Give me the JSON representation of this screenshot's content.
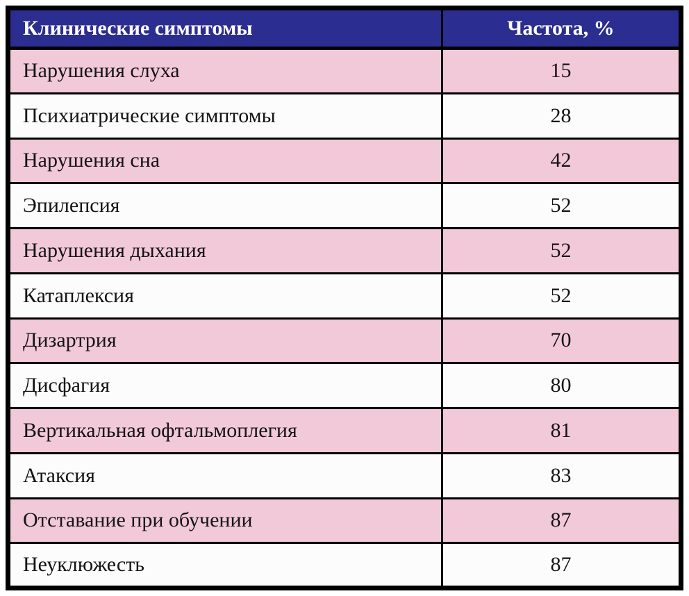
{
  "colors": {
    "header_bg": "#2b2d90",
    "header_text": "#ffffff",
    "row_pink": "#f2c9d8",
    "row_white": "#fdfcfd",
    "border": "#000000",
    "body_text": "#141414"
  },
  "chart_data": {
    "type": "table",
    "columns": [
      "Клинические симптомы",
      "Частота, %"
    ],
    "rows": [
      {
        "label": "Нарушения слуха",
        "value": "15"
      },
      {
        "label": "Психиатрические симптомы",
        "value": "28"
      },
      {
        "label": "Нарушения сна",
        "value": "42"
      },
      {
        "label": "Эпилепсия",
        "value": "52"
      },
      {
        "label": "Нарушения дыхания",
        "value": "52"
      },
      {
        "label": "Катаплексия",
        "value": "52"
      },
      {
        "label": "Дизартрия",
        "value": "70"
      },
      {
        "label": "Дисфагия",
        "value": "80"
      },
      {
        "label": "Вертикальная офтальмоплегия",
        "value": "81"
      },
      {
        "label": "Атаксия",
        "value": "83"
      },
      {
        "label": "Отставание при обучении",
        "value": "87"
      },
      {
        "label": "Неуклюжесть",
        "value": "87"
      }
    ],
    "categories": [
      "Нарушения слуха",
      "Психиатрические симптомы",
      "Нарушения сна",
      "Эпилепсия",
      "Нарушения дыхания",
      "Катаплексия",
      "Дизартрия",
      "Дисфагия",
      "Вертикальная офтальмоплегия",
      "Атаксия",
      "Отставание при обучении",
      "Неуклюжесть"
    ],
    "values": [
      15,
      28,
      42,
      52,
      52,
      52,
      70,
      80,
      81,
      83,
      87,
      87
    ],
    "title": "",
    "legend": "none",
    "grid": "table-borders"
  }
}
